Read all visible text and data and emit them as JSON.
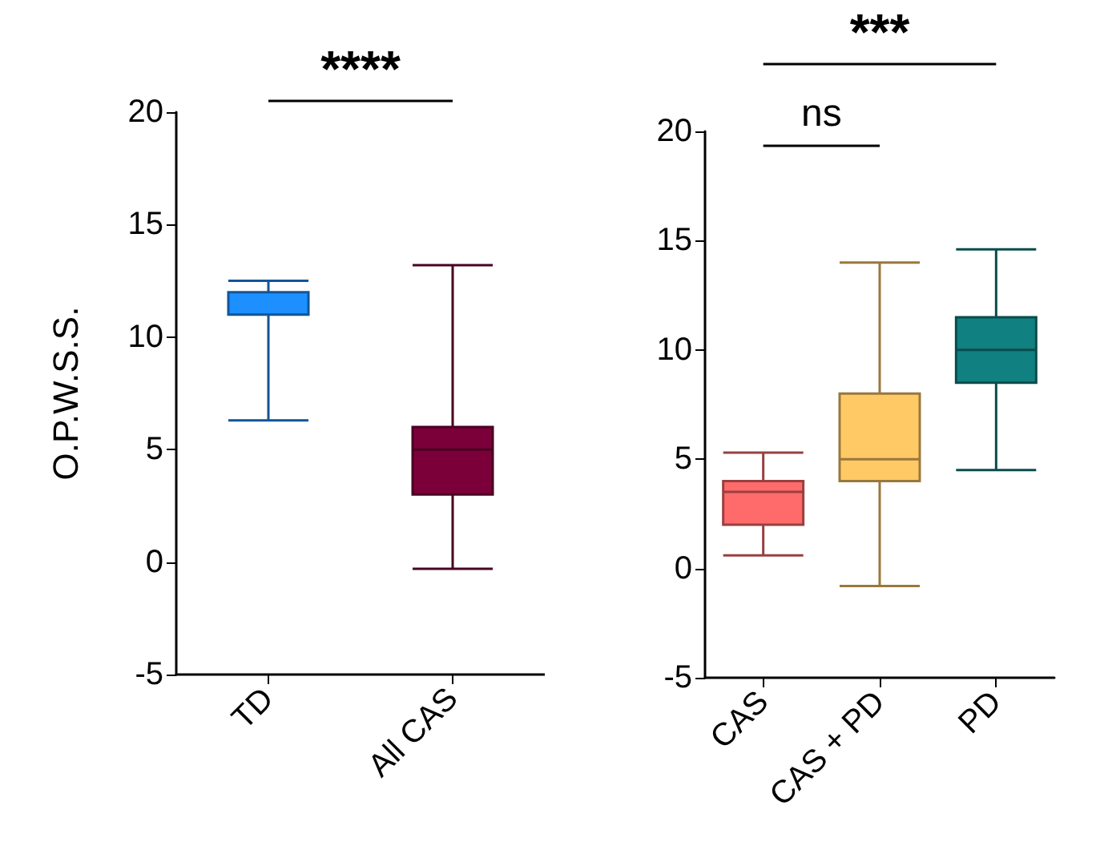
{
  "chart_data": [
    {
      "type": "box",
      "ylabel": "O.P.W.S.S.",
      "categories": [
        "TD",
        "All CAS"
      ],
      "colors": [
        "#1e8fff",
        "#7b003a"
      ],
      "boxes": [
        {
          "low": 6.3,
          "q1": 11,
          "median": 12,
          "q3": 12,
          "high": 12.5
        },
        {
          "low": -0.3,
          "q1": 3,
          "median": 5,
          "q3": 6,
          "high": 13.2
        }
      ],
      "ylim": [
        -5,
        20
      ],
      "yticks": [
        -5,
        0,
        5,
        10,
        15,
        20
      ],
      "grid": false,
      "annotations": [
        "****"
      ]
    },
    {
      "type": "box",
      "categories": [
        "CAS",
        "CAS + PD",
        "PD"
      ],
      "colors": [
        "#ff6b6b",
        "#ffc966",
        "#118080"
      ],
      "boxes": [
        {
          "low": 0.6,
          "q1": 2,
          "median": 3.5,
          "q3": 4,
          "high": 5.3
        },
        {
          "low": -0.8,
          "q1": 4,
          "median": 5,
          "q3": 8,
          "high": 14
        },
        {
          "low": 4.5,
          "q1": 8.5,
          "median": 10,
          "q3": 11.5,
          "high": 14.6
        }
      ],
      "ylim": [
        -5,
        20
      ],
      "yticks": [
        -5,
        0,
        5,
        10,
        15,
        20
      ],
      "grid": false,
      "annotations": [
        "ns",
        "***"
      ]
    }
  ]
}
